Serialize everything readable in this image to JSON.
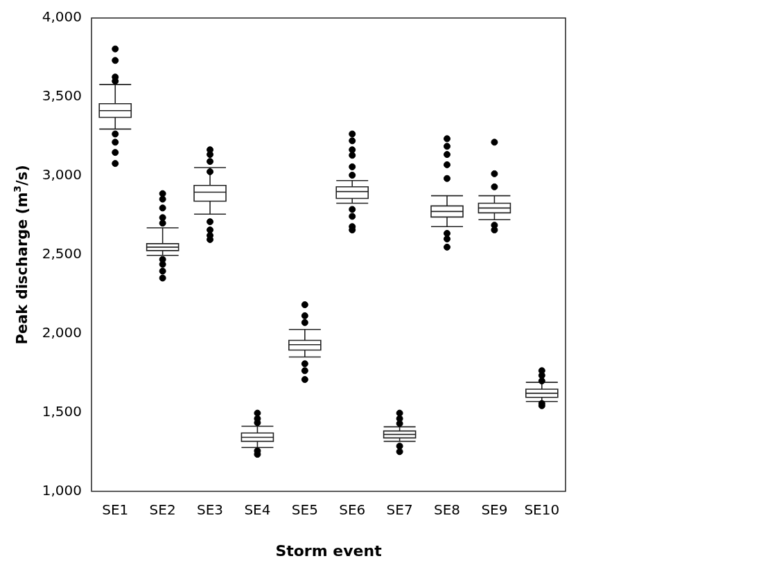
{
  "chart_data": {
    "type": "box",
    "xlabel": "Storm event",
    "ylabel": "Peak discharge (m$^{3}$/s)",
    "categories": [
      "SE1",
      "SE2",
      "SE3",
      "SE4",
      "SE5",
      "SE6",
      "SE7",
      "SE8",
      "SE9",
      "SE10"
    ],
    "ylim": [
      1000,
      4000
    ],
    "yticks": [
      {
        "value": 1000,
        "label": "1,000"
      },
      {
        "value": 1500,
        "label": "1,500"
      },
      {
        "value": 2000,
        "label": "2,000"
      },
      {
        "value": 2500,
        "label": "2,500"
      },
      {
        "value": 3000,
        "label": "3,000"
      },
      {
        "value": 3500,
        "label": "3,500"
      },
      {
        "value": 4000,
        "label": "4,000"
      }
    ],
    "grid": false,
    "legend": false,
    "marker": "circle",
    "boxes": [
      {
        "low": 3296,
        "q1": 3370,
        "median": 3413,
        "q3": 3457,
        "high": 3578,
        "outliers": [
          3804,
          3731,
          3626,
          3600,
          3265,
          3213,
          3148,
          3078
        ]
      },
      {
        "low": 2496,
        "q1": 2526,
        "median": 2548,
        "q3": 2570,
        "high": 2670,
        "outliers": [
          2887,
          2852,
          2796,
          2735,
          2700,
          2470,
          2439,
          2396,
          2352
        ]
      },
      {
        "low": 2757,
        "q1": 2839,
        "median": 2896,
        "q3": 2939,
        "high": 3052,
        "outliers": [
          3165,
          3135,
          3091,
          3026,
          2709,
          2657,
          2622,
          2596
        ]
      },
      {
        "low": 1278,
        "q1": 1317,
        "median": 1343,
        "q3": 1370,
        "high": 1413,
        "outliers": [
          1496,
          1461,
          1435,
          1257,
          1235
        ]
      },
      {
        "low": 1852,
        "q1": 1896,
        "median": 1930,
        "q3": 1957,
        "high": 2026,
        "outliers": [
          2183,
          2113,
          2070,
          1809,
          1765,
          1709
        ]
      },
      {
        "low": 2826,
        "q1": 2857,
        "median": 2900,
        "q3": 2930,
        "high": 2970,
        "outliers": [
          3265,
          3222,
          3165,
          3130,
          3057,
          3004,
          2787,
          2743,
          2678,
          2657
        ]
      },
      {
        "low": 1317,
        "q1": 1339,
        "median": 1361,
        "q3": 1383,
        "high": 1409,
        "outliers": [
          1496,
          1461,
          1430,
          1287,
          1252
        ]
      },
      {
        "low": 2678,
        "q1": 2739,
        "median": 2774,
        "q3": 2809,
        "high": 2874,
        "outliers": [
          3235,
          3187,
          3135,
          3070,
          2983,
          2635,
          2600,
          2548
        ]
      },
      {
        "low": 2722,
        "q1": 2765,
        "median": 2796,
        "q3": 2826,
        "high": 2874,
        "outliers": [
          3213,
          3013,
          2930,
          2687,
          2657
        ]
      },
      {
        "low": 1570,
        "q1": 1596,
        "median": 1622,
        "q3": 1648,
        "high": 1691,
        "outliers": [
          1765,
          1735,
          1700,
          1557,
          1543
        ]
      }
    ]
  }
}
